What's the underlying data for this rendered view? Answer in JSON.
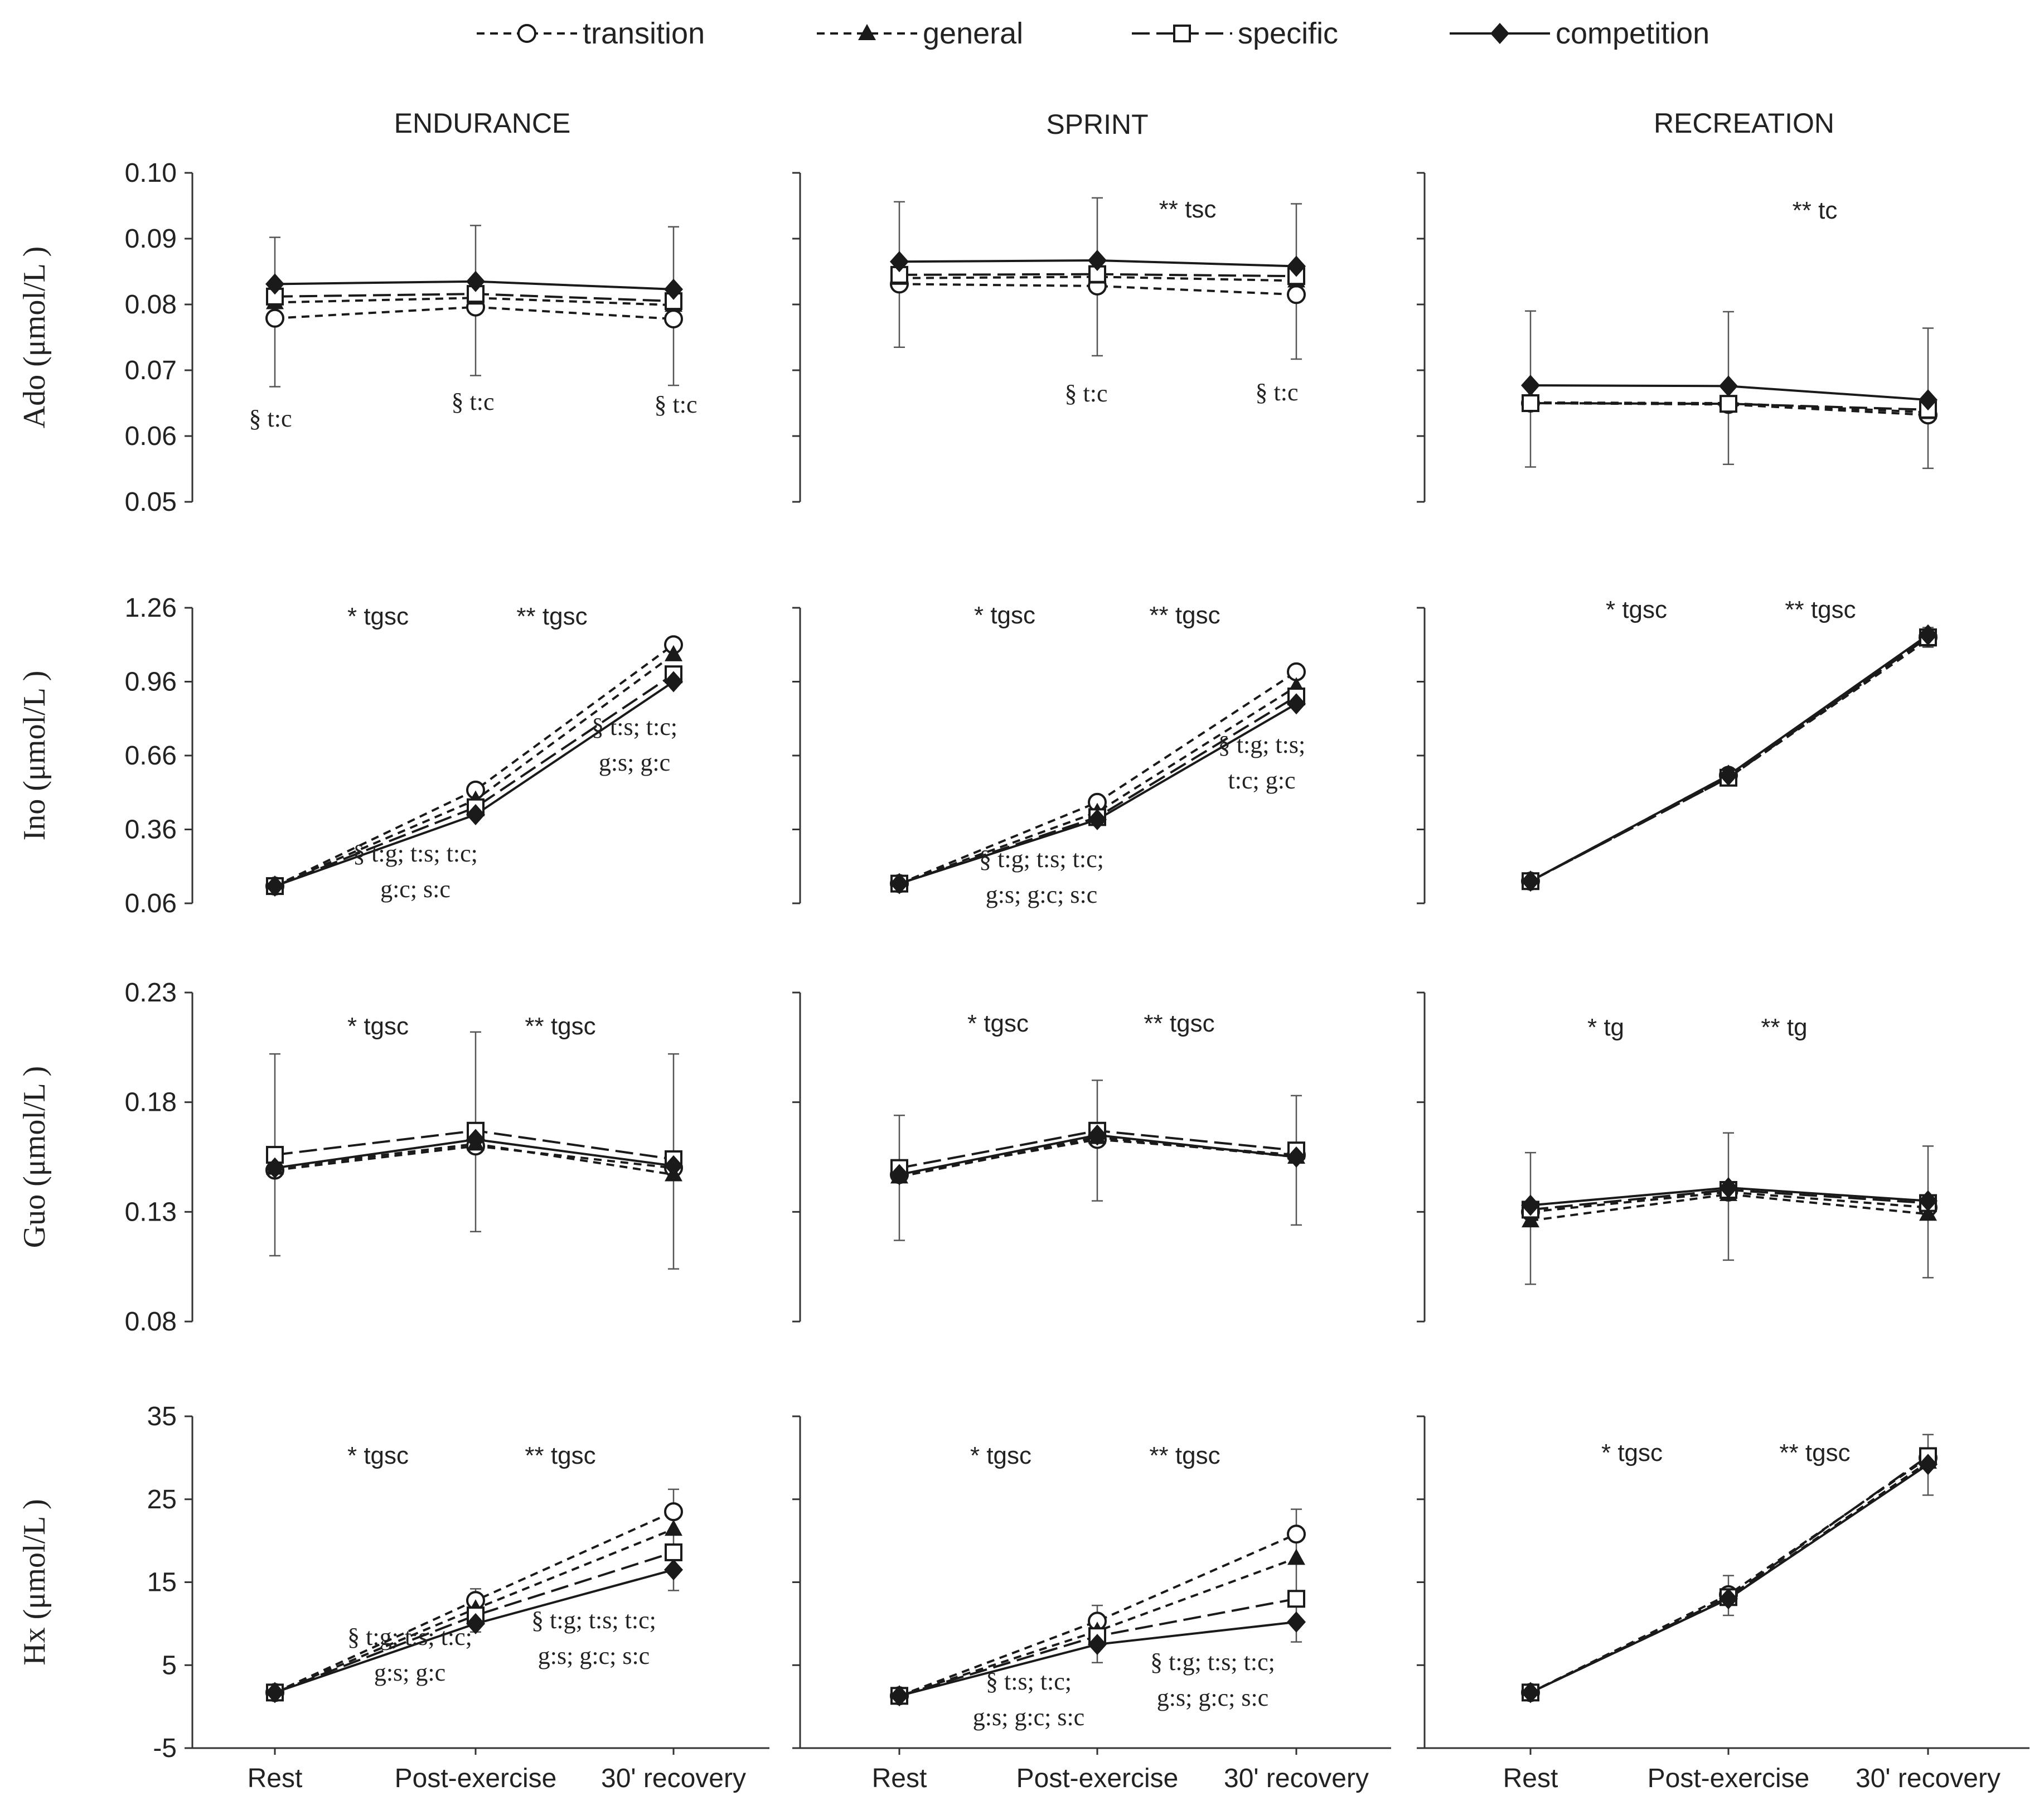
{
  "legend": [
    {
      "key": "transition",
      "label": "transition"
    },
    {
      "key": "general",
      "label": "general"
    },
    {
      "key": "specific",
      "label": "specific"
    },
    {
      "key": "competition",
      "label": "competition"
    }
  ],
  "column_titles": [
    "ENDURANCE",
    "SPRINT",
    "RECREATION"
  ],
  "x_categories": [
    "Rest",
    "Post-exercise",
    "30' recovery"
  ],
  "styles": {
    "line_color": "#1a1a1a",
    "marker_fill_open": "#ffffff",
    "axis_color": "#333333"
  },
  "chart_data": [
    {
      "type": "line",
      "row": 0,
      "col": 0,
      "panel": "ENDURANCE",
      "title": "ENDURANCE",
      "ylabel": "Ado (μmol/L )",
      "ylim": [
        0.05,
        0.1
      ],
      "yticks": [
        "0.10",
        "0.09",
        "0.08",
        "0.07",
        "0.06",
        "0.05"
      ],
      "categories": [
        "Rest",
        "Post-exercise",
        "30' recovery"
      ],
      "series": [
        {
          "name": "transition",
          "values": [
            0.0779,
            0.0796,
            0.0778
          ]
        },
        {
          "name": "general",
          "values": [
            0.0803,
            0.081,
            0.0799
          ]
        },
        {
          "name": "specific",
          "values": [
            0.0812,
            0.0816,
            0.0805
          ]
        },
        {
          "name": "competition",
          "values": [
            0.0831,
            0.0835,
            0.0823
          ]
        }
      ],
      "error_bars": [
        [
          0.0675,
          0.0902
        ],
        [
          0.0692,
          0.092
        ],
        [
          0.0677,
          0.0918
        ]
      ],
      "annotations": [],
      "section_notes": [
        [
          "§ t:c"
        ],
        [
          "§ t:c"
        ],
        [
          "§ t:c"
        ]
      ]
    },
    {
      "type": "line",
      "row": 0,
      "col": 1,
      "panel": "SPRINT",
      "title": "SPRINT",
      "ylabel": "",
      "ylim": [
        0.05,
        0.1
      ],
      "yticks": [],
      "categories": [
        "Rest",
        "Post-exercise",
        "30' recovery"
      ],
      "series": [
        {
          "name": "transition",
          "values": [
            0.0831,
            0.0828,
            0.0815
          ]
        },
        {
          "name": "general",
          "values": [
            0.084,
            0.0842,
            0.0836
          ]
        },
        {
          "name": "specific",
          "values": [
            0.0845,
            0.0846,
            0.0843
          ]
        },
        {
          "name": "competition",
          "values": [
            0.0865,
            0.0867,
            0.0858
          ]
        }
      ],
      "error_bars": [
        [
          0.0735,
          0.0956
        ],
        [
          0.0722,
          0.0962
        ],
        [
          0.0717,
          0.0953
        ]
      ],
      "annotations": [
        "** tsc"
      ],
      "section_notes": [
        [],
        [
          "§ t:c"
        ],
        [
          "§ t:c"
        ]
      ]
    },
    {
      "type": "line",
      "row": 0,
      "col": 2,
      "panel": "RECREATION",
      "title": "RECREATION",
      "ylabel": "",
      "ylim": [
        0.05,
        0.1
      ],
      "yticks": [],
      "categories": [
        "Rest",
        "Post-exercise",
        "30' recovery"
      ],
      "series": [
        {
          "name": "transition",
          "values": [
            0.065,
            0.0648,
            0.0632
          ]
        },
        {
          "name": "general",
          "values": [
            0.0651,
            0.065,
            0.0636
          ]
        },
        {
          "name": "specific",
          "values": [
            0.065,
            0.0649,
            0.064
          ]
        },
        {
          "name": "competition",
          "values": [
            0.0677,
            0.0676,
            0.0655
          ]
        }
      ],
      "error_bars": [
        [
          0.0553,
          0.079
        ],
        [
          0.0557,
          0.0789
        ],
        [
          0.0551,
          0.0764
        ]
      ],
      "annotations": [
        "** tc"
      ],
      "section_notes": [
        [],
        [],
        []
      ]
    },
    {
      "type": "line",
      "row": 1,
      "col": 0,
      "panel": "ENDURANCE",
      "title": "",
      "ylabel": "Ino (μmol/L )",
      "ylim": [
        0.06,
        1.26
      ],
      "yticks": [
        "1.26",
        "0.96",
        "0.66",
        "0.36",
        "0.06"
      ],
      "categories": [
        "Rest",
        "Post-exercise",
        "30' recovery"
      ],
      "series": [
        {
          "name": "transition",
          "values": [
            0.13,
            0.52,
            1.11
          ]
        },
        {
          "name": "general",
          "values": [
            0.13,
            0.48,
            1.07
          ]
        },
        {
          "name": "specific",
          "values": [
            0.13,
            0.45,
            0.99
          ]
        },
        {
          "name": "competition",
          "values": [
            0.13,
            0.42,
            0.96
          ]
        }
      ],
      "error_bars": [],
      "annotations": [
        "* tgsc",
        "** tgsc"
      ],
      "section_notes": [
        [],
        [
          "§ t:g; t:s; t:c;",
          "g:c; s:c"
        ],
        [
          "§ t:s; t:c;",
          "g:s; g:c"
        ]
      ]
    },
    {
      "type": "line",
      "row": 1,
      "col": 1,
      "panel": "SPRINT",
      "title": "",
      "ylabel": "",
      "ylim": [
        0.06,
        1.26
      ],
      "yticks": [],
      "categories": [
        "Rest",
        "Post-exercise",
        "30' recovery"
      ],
      "series": [
        {
          "name": "transition",
          "values": [
            0.14,
            0.47,
            1.0
          ]
        },
        {
          "name": "general",
          "values": [
            0.14,
            0.43,
            0.94
          ]
        },
        {
          "name": "specific",
          "values": [
            0.14,
            0.41,
            0.9
          ]
        },
        {
          "name": "competition",
          "values": [
            0.14,
            0.4,
            0.87
          ]
        }
      ],
      "error_bars": [],
      "annotations": [
        "* tgsc",
        "** tgsc"
      ],
      "section_notes": [
        [],
        [
          "§ t:g; t:s; t:c;",
          "g:s; g:c; s:c"
        ],
        [
          "§ t:g; t:s;",
          "t:c; g:c"
        ]
      ]
    },
    {
      "type": "line",
      "row": 1,
      "col": 2,
      "panel": "RECREATION",
      "title": "",
      "ylabel": "",
      "ylim": [
        0.06,
        1.26
      ],
      "yticks": [],
      "categories": [
        "Rest",
        "Post-exercise",
        "30' recovery"
      ],
      "series": [
        {
          "name": "transition",
          "values": [
            0.15,
            0.58,
            1.14
          ]
        },
        {
          "name": "general",
          "values": [
            0.15,
            0.57,
            1.13
          ]
        },
        {
          "name": "specific",
          "values": [
            0.15,
            0.57,
            1.14
          ]
        },
        {
          "name": "competition",
          "values": [
            0.15,
            0.58,
            1.15
          ]
        }
      ],
      "error_bars": [
        [],
        [],
        [
          1.1,
          1.18
        ]
      ],
      "annotations": [
        "* tgsc",
        "** tgsc"
      ],
      "section_notes": [
        [],
        [],
        []
      ]
    },
    {
      "type": "line",
      "row": 2,
      "col": 0,
      "panel": "ENDURANCE",
      "title": "",
      "ylabel": "Guo (μmol/L )",
      "ylim": [
        0.08,
        0.23
      ],
      "yticks": [
        "0.23",
        "0.18",
        "0.13",
        "0.08"
      ],
      "categories": [
        "Rest",
        "Post-exercise",
        "30' recovery"
      ],
      "series": [
        {
          "name": "transition",
          "values": [
            0.149,
            0.16,
            0.15
          ]
        },
        {
          "name": "general",
          "values": [
            0.15,
            0.161,
            0.147
          ]
        },
        {
          "name": "specific",
          "values": [
            0.156,
            0.167,
            0.154
          ]
        },
        {
          "name": "competition",
          "values": [
            0.15,
            0.163,
            0.151
          ]
        }
      ],
      "error_bars": [
        [
          0.11,
          0.202
        ],
        [
          0.121,
          0.212
        ],
        [
          0.104,
          0.202
        ]
      ],
      "annotations": [
        "* tgsc",
        "** tgsc"
      ],
      "section_notes": [
        [],
        [],
        []
      ]
    },
    {
      "type": "line",
      "row": 2,
      "col": 1,
      "panel": "SPRINT",
      "title": "",
      "ylabel": "",
      "ylim": [
        0.08,
        0.23
      ],
      "yticks": [],
      "categories": [
        "Rest",
        "Post-exercise",
        "30' recovery"
      ],
      "series": [
        {
          "name": "transition",
          "values": [
            0.147,
            0.163,
            0.156
          ]
        },
        {
          "name": "general",
          "values": [
            0.146,
            0.164,
            0.155
          ]
        },
        {
          "name": "specific",
          "values": [
            0.15,
            0.167,
            0.158
          ]
        },
        {
          "name": "competition",
          "values": [
            0.147,
            0.165,
            0.155
          ]
        }
      ],
      "error_bars": [
        [
          0.117,
          0.174
        ],
        [
          0.135,
          0.19
        ],
        [
          0.124,
          0.183
        ]
      ],
      "annotations": [
        "* tgsc",
        "** tgsc"
      ],
      "section_notes": [
        [],
        [],
        []
      ]
    },
    {
      "type": "line",
      "row": 2,
      "col": 2,
      "panel": "RECREATION",
      "title": "",
      "ylabel": "",
      "ylim": [
        0.08,
        0.23
      ],
      "yticks": [],
      "categories": [
        "Rest",
        "Post-exercise",
        "30' recovery"
      ],
      "series": [
        {
          "name": "transition",
          "values": [
            0.13,
            0.139,
            0.132
          ]
        },
        {
          "name": "general",
          "values": [
            0.126,
            0.138,
            0.129
          ]
        },
        {
          "name": "specific",
          "values": [
            0.131,
            0.14,
            0.134
          ]
        },
        {
          "name": "competition",
          "values": [
            0.133,
            0.141,
            0.135
          ]
        }
      ],
      "error_bars": [
        [
          0.097,
          0.157
        ],
        [
          0.108,
          0.166
        ],
        [
          0.1,
          0.16
        ]
      ],
      "annotations": [
        "* tg",
        "** tg"
      ],
      "section_notes": [
        [],
        [],
        []
      ]
    },
    {
      "type": "line",
      "row": 3,
      "col": 0,
      "panel": "ENDURANCE",
      "title": "",
      "ylabel": "Hx (μmol/L )",
      "ylim": [
        -5,
        35
      ],
      "yticks": [
        "35",
        "25",
        "15",
        "5",
        "-5"
      ],
      "categories": [
        "Rest",
        "Post-exercise",
        "30' recovery"
      ],
      "series": [
        {
          "name": "transition",
          "values": [
            1.7,
            12.8,
            23.5
          ]
        },
        {
          "name": "general",
          "values": [
            1.7,
            11.8,
            21.4
          ]
        },
        {
          "name": "specific",
          "values": [
            1.7,
            11.0,
            18.6
          ]
        },
        {
          "name": "competition",
          "values": [
            1.7,
            10.0,
            16.5
          ]
        }
      ],
      "error_bars": [
        [],
        [
          9.0,
          14.2
        ],
        [
          14.0,
          26.2
        ]
      ],
      "annotations": [
        "* tgsc",
        "** tgsc"
      ],
      "section_notes": [
        [],
        [
          "§ t:g; t:s; t:c;",
          "g:s; g:c"
        ],
        [
          "§ t:g; t:s; t:c;",
          "g:s; g:c; s:c"
        ]
      ]
    },
    {
      "type": "line",
      "row": 3,
      "col": 1,
      "panel": "SPRINT",
      "title": "",
      "ylabel": "",
      "ylim": [
        -5,
        35
      ],
      "yticks": [],
      "categories": [
        "Rest",
        "Post-exercise",
        "30' recovery"
      ],
      "series": [
        {
          "name": "transition",
          "values": [
            1.3,
            10.3,
            20.8
          ]
        },
        {
          "name": "general",
          "values": [
            1.3,
            9.1,
            17.9
          ]
        },
        {
          "name": "specific",
          "values": [
            1.3,
            8.5,
            13.0
          ]
        },
        {
          "name": "competition",
          "values": [
            1.3,
            7.5,
            10.2
          ]
        }
      ],
      "error_bars": [
        [],
        [
          5.3,
          12.2
        ],
        [
          7.8,
          23.8
        ]
      ],
      "annotations": [
        "* tgsc",
        "** tgsc"
      ],
      "section_notes": [
        [],
        [
          "§ t:s; t:c;",
          "g:s; g:c; s:c"
        ],
        [
          "§ t:g; t:s; t:c;",
          "g:s; g:c; s:c"
        ]
      ]
    },
    {
      "type": "line",
      "row": 3,
      "col": 2,
      "panel": "RECREATION",
      "title": "",
      "ylabel": "",
      "ylim": [
        -5,
        35
      ],
      "yticks": [],
      "categories": [
        "Rest",
        "Post-exercise",
        "30' recovery"
      ],
      "series": [
        {
          "name": "transition",
          "values": [
            1.7,
            13.5,
            30.0
          ]
        },
        {
          "name": "general",
          "values": [
            1.7,
            13.0,
            29.5
          ]
        },
        {
          "name": "specific",
          "values": [
            1.7,
            13.2,
            30.2
          ]
        },
        {
          "name": "competition",
          "values": [
            1.7,
            13.0,
            29.2
          ]
        }
      ],
      "error_bars": [
        [],
        [
          11.0,
          15.8
        ],
        [
          25.5,
          32.8
        ]
      ],
      "annotations": [
        "* tgsc",
        "** tgsc"
      ],
      "section_notes": [
        [],
        [],
        []
      ]
    }
  ]
}
